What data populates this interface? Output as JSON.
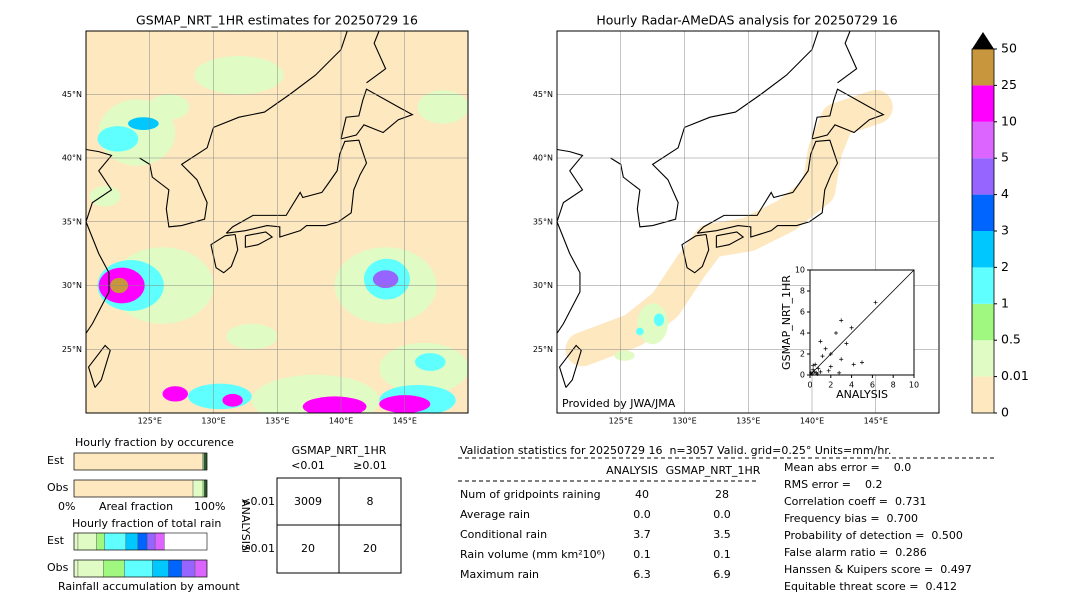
{
  "left_map": {
    "title": "GSMAP_NRT_1HR estimates for 20250729 16",
    "lat_labels": [
      "45°N",
      "40°N",
      "35°N",
      "30°N",
      "25°N"
    ],
    "lon_labels": [
      "125°E",
      "130°E",
      "135°E",
      "140°E",
      "145°E"
    ]
  },
  "right_map": {
    "title": "Hourly Radar-AMeDAS analysis for 20250729 16",
    "lat_labels": [
      "45°N",
      "40°N",
      "35°N",
      "30°N",
      "25°N"
    ],
    "lon_labels": [
      "125°E",
      "130°E",
      "135°E",
      "140°E",
      "145°E"
    ],
    "credit": "Provided by JWA/JMA"
  },
  "scatter": {
    "type": "scatter",
    "xlabel": "ANALYSIS",
    "ylabel": "GSMAP_NRT_1HR",
    "xlim": [
      0,
      10
    ],
    "ylim": [
      0,
      10
    ],
    "xticks": [
      0,
      2,
      4,
      6,
      8,
      10
    ],
    "yticks": [
      0,
      2,
      4,
      6,
      8,
      10
    ],
    "x": [
      0.1,
      0.2,
      0.3,
      0.4,
      0.5,
      0.6,
      0.8,
      1,
      1,
      1.2,
      1.5,
      2,
      2,
      2.5,
      3,
      3,
      3.5,
      4,
      4.2,
      5,
      6.3,
      0.3,
      0.7,
      1.8,
      2.8
    ],
    "y": [
      0.2,
      0.1,
      0.5,
      0.3,
      1,
      0.2,
      0.6,
      3.2,
      0.3,
      1.8,
      2.5,
      2,
      0.8,
      4,
      5.2,
      1.5,
      3,
      4.5,
      1,
      1.2,
      6.9,
      0.9,
      0.1,
      0.4,
      0.2
    ]
  },
  "colorbar": {
    "labels": [
      "0",
      "0.01",
      "0.5",
      "1",
      "2",
      "3",
      "4",
      "5",
      "10",
      "25",
      "50"
    ],
    "colors": [
      "#fde8bf",
      "#e0fcc4",
      "#a0f880",
      "#60ffff",
      "#00c8ff",
      "#0064ff",
      "#9664ff",
      "#dc64ff",
      "#ff00ff",
      "#c8963c"
    ],
    "extend_color": "#000000"
  },
  "occurrence": {
    "title": "Hourly fraction by occurence",
    "rows": [
      "Est",
      "Obs"
    ],
    "left_label": "0%",
    "center_label": "Areal fraction",
    "right_label": "100%",
    "segments": [
      [
        {
          "color": "#fde8bf",
          "fraction": 0.965
        },
        {
          "color": "#e0fcc4",
          "fraction": 0.01
        },
        {
          "color": "#2a5a2a",
          "fraction": 0.025
        }
      ],
      [
        {
          "color": "#fde8bf",
          "fraction": 0.895
        },
        {
          "color": "#e0fcc4",
          "fraction": 0.075
        },
        {
          "color": "#a0f880",
          "fraction": 0.01
        },
        {
          "color": "#2a5a2a",
          "fraction": 0.02
        }
      ]
    ]
  },
  "total_rain": {
    "title": "Hourly fraction of total rain",
    "rows": [
      "Est",
      "Obs"
    ],
    "footer": "Rainfall accumulation by amount",
    "segments": [
      [
        {
          "color": "#e0fcc4",
          "fraction": 0.03
        },
        {
          "color": "#e0fcc4",
          "fraction": 0.14
        },
        {
          "color": "#a0f880",
          "fraction": 0.06
        },
        {
          "color": "#60ffff",
          "fraction": 0.16
        },
        {
          "color": "#00c8ff",
          "fraction": 0.09
        },
        {
          "color": "#0064ff",
          "fraction": 0.07
        },
        {
          "color": "#9664ff",
          "fraction": 0.06
        },
        {
          "color": "#dc64ff",
          "fraction": 0.07
        }
      ],
      [
        {
          "color": "#e0fcc4",
          "fraction": 0.03
        },
        {
          "color": "#e0fcc4",
          "fraction": 0.19
        },
        {
          "color": "#a0f880",
          "fraction": 0.16
        },
        {
          "color": "#60ffff",
          "fraction": 0.21
        },
        {
          "color": "#00c8ff",
          "fraction": 0.12
        },
        {
          "color": "#0064ff",
          "fraction": 0.1
        },
        {
          "color": "#9664ff",
          "fraction": 0.1
        },
        {
          "color": "#dc64ff",
          "fraction": 0.09
        }
      ]
    ]
  },
  "contingency": {
    "title": "GSMAP_NRT_1HR",
    "columns": [
      "<0.01",
      "≥0.01"
    ],
    "row_title": "ANALYSIS",
    "rows": [
      "<0.01",
      "≥0.01"
    ],
    "cells": [
      [
        "3009",
        "8"
      ],
      [
        "20",
        "20"
      ]
    ]
  },
  "validation": {
    "header": "Validation statistics for 20250729 16  n=3057 Valid. grid=0.25° Units=mm/hr.",
    "columns": [
      "ANALYSIS",
      "GSMAP_NRT_1HR"
    ],
    "rows": [
      [
        "Num of gridpoints raining",
        "40",
        "28"
      ],
      [
        "Average rain",
        "0.0",
        "0.0"
      ],
      [
        "Conditional rain",
        "3.7",
        "3.5"
      ],
      [
        "Rain volume (mm km²10⁶)",
        "0.1",
        "0.1"
      ],
      [
        "Maximum rain",
        "6.3",
        "6.9"
      ]
    ],
    "scores": [
      "Mean abs error =    0.0",
      "RMS error =    0.2",
      "Correlation coeff =  0.731",
      "Frequency bias =  0.700",
      "Probability of detection =  0.500",
      "False alarm ratio =  0.286",
      "Hanssen & Kuipers score =  0.497",
      "Equitable threat score =  0.412"
    ]
  }
}
